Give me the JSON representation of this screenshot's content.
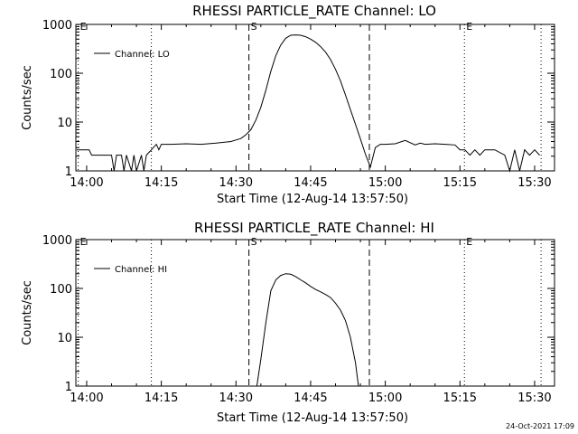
{
  "footer": {
    "timestamp": "24-Oct-2021 17:09"
  },
  "chart_data": [
    {
      "type": "line",
      "title": "RHESSI PARTICLE_RATE Channel: LO",
      "xlabel": "Start Time (12-Aug-14 13:57:50)",
      "ylabel": "Counts/sec",
      "y_scale": "log",
      "ylim": [
        1,
        1000
      ],
      "x_unit": "minutes since 14:00",
      "xlim": [
        -2.17,
        94
      ],
      "x_ticks": [
        {
          "value": 0,
          "label": "14:00"
        },
        {
          "value": 15,
          "label": "14:15"
        },
        {
          "value": 30,
          "label": "14:30"
        },
        {
          "value": 45,
          "label": "14:45"
        },
        {
          "value": 60,
          "label": "15:00"
        },
        {
          "value": 75,
          "label": "15:15"
        },
        {
          "value": 90,
          "label": "15:30"
        }
      ],
      "y_ticks": [
        {
          "value": 1,
          "label": "1"
        },
        {
          "value": 10,
          "label": "10"
        },
        {
          "value": 100,
          "label": "100"
        },
        {
          "value": 1000,
          "label": "1000"
        }
      ],
      "markers": [
        {
          "x": -1.7,
          "label": "E",
          "style": "dotted"
        },
        {
          "x": 13,
          "label": "",
          "style": "dotted"
        },
        {
          "x": 32.6,
          "label": "S",
          "style": "dashed"
        },
        {
          "x": 56.8,
          "label": "",
          "style": "dashed"
        },
        {
          "x": 75.9,
          "label": "E",
          "style": "dotted"
        },
        {
          "x": 91.3,
          "label": "",
          "style": "dotted"
        }
      ],
      "legend": {
        "label": "Channel: LO",
        "placement": "top-left"
      },
      "series": [
        {
          "name": "Channel: LO",
          "x": [
            -2,
            0.5,
            1,
            3,
            5,
            5.5,
            6,
            7,
            7.5,
            8,
            9,
            9.5,
            10,
            11,
            11.5,
            12,
            13,
            14,
            14.5,
            15,
            17,
            20,
            23,
            26,
            29,
            30,
            31,
            32,
            33,
            34,
            35,
            36,
            37,
            38,
            39,
            40,
            41,
            42,
            43,
            44,
            45,
            46,
            47,
            48,
            49,
            50,
            51,
            52,
            53,
            54,
            55,
            56,
            57,
            58,
            59,
            60,
            62,
            64,
            66,
            67,
            68,
            70,
            72,
            74,
            75,
            76,
            77,
            78,
            79,
            80,
            82,
            84,
            85,
            86,
            87,
            88,
            89,
            90,
            91
          ],
          "y": [
            2.7,
            2.7,
            2.1,
            2.1,
            2.1,
            1.0,
            2.1,
            2.1,
            1.0,
            2.1,
            1.0,
            2.1,
            1.0,
            2.1,
            1.0,
            2.1,
            2.7,
            3.5,
            2.7,
            3.5,
            3.5,
            3.6,
            3.5,
            3.7,
            4.0,
            4.3,
            4.6,
            5.5,
            7.0,
            11,
            20,
            45,
            110,
            230,
            380,
            520,
            600,
            610,
            600,
            560,
            500,
            430,
            350,
            270,
            190,
            120,
            70,
            36,
            18,
            9,
            4.5,
            2.2,
            1.2,
            3.0,
            3.5,
            3.5,
            3.6,
            4.2,
            3.4,
            3.7,
            3.5,
            3.6,
            3.5,
            3.4,
            2.7,
            2.7,
            2.1,
            2.7,
            2.1,
            2.7,
            2.7,
            2.1,
            1.0,
            2.7,
            1.0,
            2.7,
            2.1,
            2.7,
            2.1
          ]
        }
      ]
    },
    {
      "type": "line",
      "title": "RHESSI PARTICLE_RATE Channel: HI",
      "xlabel": "Start Time (12-Aug-14 13:57:50)",
      "ylabel": "Counts/sec",
      "y_scale": "log",
      "ylim": [
        1,
        1000
      ],
      "x_unit": "minutes since 14:00",
      "xlim": [
        -2.17,
        94
      ],
      "x_ticks": [
        {
          "value": 0,
          "label": "14:00"
        },
        {
          "value": 15,
          "label": "14:15"
        },
        {
          "value": 30,
          "label": "14:30"
        },
        {
          "value": 45,
          "label": "14:45"
        },
        {
          "value": 60,
          "label": "15:00"
        },
        {
          "value": 75,
          "label": "15:15"
        },
        {
          "value": 90,
          "label": "15:30"
        }
      ],
      "y_ticks": [
        {
          "value": 1,
          "label": "1"
        },
        {
          "value": 10,
          "label": "10"
        },
        {
          "value": 100,
          "label": "100"
        },
        {
          "value": 1000,
          "label": "1000"
        }
      ],
      "markers": [
        {
          "x": -1.7,
          "label": "E",
          "style": "dotted"
        },
        {
          "x": 13,
          "label": "",
          "style": "dotted"
        },
        {
          "x": 32.6,
          "label": "S",
          "style": "dashed"
        },
        {
          "x": 56.8,
          "label": "",
          "style": "dashed"
        },
        {
          "x": 75.9,
          "label": "E",
          "style": "dotted"
        },
        {
          "x": 91.3,
          "label": "",
          "style": "dotted"
        }
      ],
      "legend": {
        "label": "Channel: HI",
        "placement": "top-left"
      },
      "series": [
        {
          "name": "Channel: HI",
          "x": [
            34.2,
            35,
            36,
            37,
            38,
            39,
            40,
            41,
            42,
            43,
            44,
            45,
            46,
            47,
            48,
            49,
            50,
            51,
            52,
            53,
            54,
            54.6
          ],
          "y": [
            1.0,
            3.5,
            20,
            90,
            150,
            185,
            200,
            195,
            175,
            150,
            130,
            110,
            95,
            85,
            75,
            65,
            50,
            36,
            22,
            10,
            3.0,
            1.0
          ]
        }
      ]
    }
  ]
}
